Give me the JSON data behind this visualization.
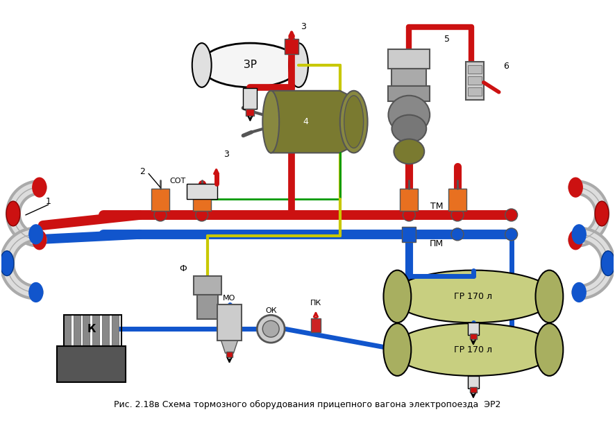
{
  "title": "Рис. 2.18в Схема тормозного оборудования прицепного вагона электропоезда  ЭР2",
  "bg_color": "#ffffff",
  "red_color": "#cc1111",
  "blue_color": "#1155cc",
  "yellow_color": "#c8c800",
  "green_color": "#009900",
  "gray_color": "#aaaaaa",
  "orange_color": "#e87020",
  "olive_color": "#7a7a30",
  "dark_gray": "#555555",
  "light_gray": "#cccccc",
  "label_TM": "ТМ",
  "label_PM": "ПМ",
  "label_ZR": "ЗР",
  "label_GR1": "ГР 170 л",
  "label_GR2": "ГР 170 л",
  "label_K": "К",
  "label_F": "Ф",
  "label_MO": "МО",
  "label_OK": "ОК",
  "label_PK": "ПК",
  "label_SOT": "СОТ",
  "label_1": "1",
  "label_2": "2",
  "label_3_top": "3",
  "label_3_mid": "3",
  "label_4": "4",
  "label_5": "5",
  "label_6": "6"
}
